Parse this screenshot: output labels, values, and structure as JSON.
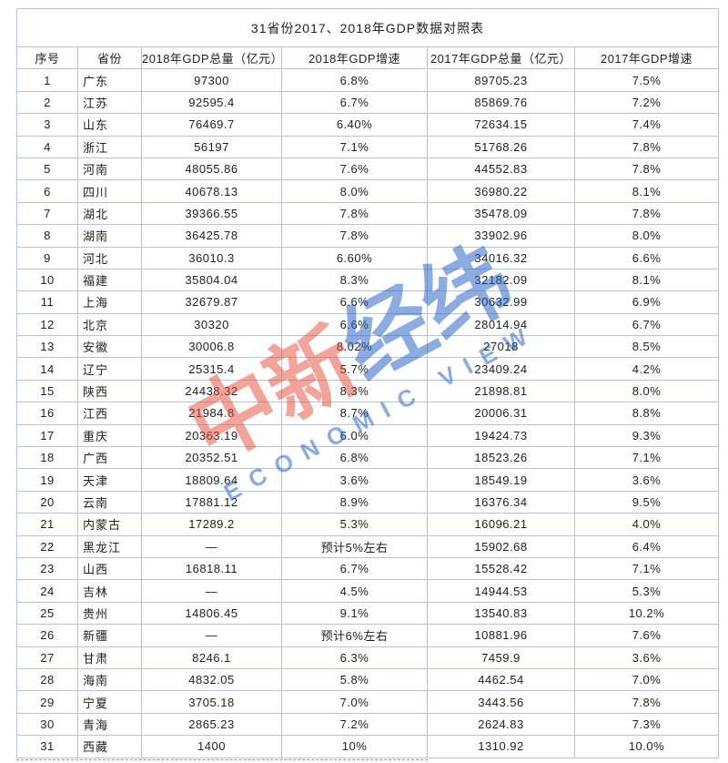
{
  "title": "31省份2017、2018年GDP数据对照表",
  "table": {
    "headers": [
      "序号",
      "省份",
      "2018年GDP总量（亿元）",
      "2018年GDP增速",
      "2017年GDP总量（亿元）",
      "2017年GDP增速"
    ],
    "rows": [
      [
        "1",
        "广东",
        "97300",
        "6.8%",
        "89705.23",
        "7.5%"
      ],
      [
        "2",
        "江苏",
        "92595.4",
        "6.7%",
        "85869.76",
        "7.2%"
      ],
      [
        "3",
        "山东",
        "76469.7",
        "6.40%",
        "72634.15",
        "7.4%"
      ],
      [
        "4",
        "浙江",
        "56197",
        "7.1%",
        "51768.26",
        "7.8%"
      ],
      [
        "5",
        "河南",
        "48055.86",
        "7.6%",
        "44552.83",
        "7.8%"
      ],
      [
        "6",
        "四川",
        "40678.13",
        "8.0%",
        "36980.22",
        "8.1%"
      ],
      [
        "7",
        "湖北",
        "39366.55",
        "7.8%",
        "35478.09",
        "7.8%"
      ],
      [
        "8",
        "湖南",
        "36425.78",
        "7.8%",
        "33902.96",
        "8.0%"
      ],
      [
        "9",
        "河北",
        "36010.3",
        "6.60%",
        "34016.32",
        "6.6%"
      ],
      [
        "10",
        "福建",
        "35804.04",
        "8.3%",
        "32182.09",
        "8.1%"
      ],
      [
        "11",
        "上海",
        "32679.87",
        "6.6%",
        "30632.99",
        "6.9%"
      ],
      [
        "12",
        "北京",
        "30320",
        "6.6%",
        "28014.94",
        "6.7%"
      ],
      [
        "13",
        "安徽",
        "30006.8",
        "8.02%",
        "27018",
        "8.5%"
      ],
      [
        "14",
        "辽宁",
        "25315.4",
        "5.7%",
        "23409.24",
        "4.2%"
      ],
      [
        "15",
        "陕西",
        "24438.32",
        "8.3%",
        "21898.81",
        "8.0%"
      ],
      [
        "16",
        "江西",
        "21984.8",
        "8.7%",
        "20006.31",
        "8.8%"
      ],
      [
        "17",
        "重庆",
        "20363.19",
        "6.0%",
        "19424.73",
        "9.3%"
      ],
      [
        "18",
        "广西",
        "20352.51",
        "6.8%",
        "18523.26",
        "7.1%"
      ],
      [
        "19",
        "天津",
        "18809.64",
        "3.6%",
        "18549.19",
        "3.6%"
      ],
      [
        "20",
        "云南",
        "17881.12",
        "8.9%",
        "16376.34",
        "9.5%"
      ],
      [
        "21",
        "内蒙古",
        "17289.2",
        "5.3%",
        "16096.21",
        "4.0%"
      ],
      [
        "22",
        "黑龙江",
        "—",
        "预计5%左右",
        "15902.68",
        "6.4%"
      ],
      [
        "23",
        "山西",
        "16818.11",
        "6.7%",
        "15528.42",
        "7.1%"
      ],
      [
        "24",
        "吉林",
        "—",
        "4.5%",
        "14944.53",
        "5.3%"
      ],
      [
        "25",
        "贵州",
        "14806.45",
        "9.1%",
        "13540.83",
        "10.2%"
      ],
      [
        "26",
        "新疆",
        "—",
        "预计6%左右",
        "10881.96",
        "7.6%"
      ],
      [
        "27",
        "甘肃",
        "8246.1",
        "6.3%",
        "7459.9",
        "3.6%"
      ],
      [
        "28",
        "海南",
        "4832.05",
        "5.8%",
        "4462.54",
        "7.0%"
      ],
      [
        "29",
        "宁夏",
        "3705.18",
        "7.0%",
        "3443.56",
        "7.8%"
      ],
      [
        "30",
        "青海",
        "2865.23",
        "7.2%",
        "2624.83",
        "7.3%"
      ],
      [
        "31",
        "西藏",
        "1400",
        "10%",
        "1310.92",
        "10.0%"
      ]
    ]
  },
  "watermark": {
    "cn_red": "中新",
    "cn_blue": "经纬",
    "en": "ECONOMIC VIEW",
    "red_color": "#e64836",
    "blue_color": "#2260c6"
  },
  "colors": {
    "border": "#b3c6dd",
    "text": "#1f1f1f",
    "background": "#ffffff"
  },
  "chart_data": {
    "type": "table",
    "title": "31省份2017、2018年GDP数据对照表",
    "columns": [
      "序号",
      "省份",
      "2018年GDP总量（亿元）",
      "2018年GDP增速",
      "2017年GDP总量（亿元）",
      "2017年GDP增速"
    ],
    "rows": [
      [
        "1",
        "广东",
        "97300",
        "6.8%",
        "89705.23",
        "7.5%"
      ],
      [
        "2",
        "江苏",
        "92595.4",
        "6.7%",
        "85869.76",
        "7.2%"
      ],
      [
        "3",
        "山东",
        "76469.7",
        "6.40%",
        "72634.15",
        "7.4%"
      ],
      [
        "4",
        "浙江",
        "56197",
        "7.1%",
        "51768.26",
        "7.8%"
      ],
      [
        "5",
        "河南",
        "48055.86",
        "7.6%",
        "44552.83",
        "7.8%"
      ],
      [
        "6",
        "四川",
        "40678.13",
        "8.0%",
        "36980.22",
        "8.1%"
      ],
      [
        "7",
        "湖北",
        "39366.55",
        "7.8%",
        "35478.09",
        "7.8%"
      ],
      [
        "8",
        "湖南",
        "36425.78",
        "7.8%",
        "33902.96",
        "8.0%"
      ],
      [
        "9",
        "河北",
        "36010.3",
        "6.60%",
        "34016.32",
        "6.6%"
      ],
      [
        "10",
        "福建",
        "35804.04",
        "8.3%",
        "32182.09",
        "8.1%"
      ],
      [
        "11",
        "上海",
        "32679.87",
        "6.6%",
        "30632.99",
        "6.9%"
      ],
      [
        "12",
        "北京",
        "30320",
        "6.6%",
        "28014.94",
        "6.7%"
      ],
      [
        "13",
        "安徽",
        "30006.8",
        "8.02%",
        "27018",
        "8.5%"
      ],
      [
        "14",
        "辽宁",
        "25315.4",
        "5.7%",
        "23409.24",
        "4.2%"
      ],
      [
        "15",
        "陕西",
        "24438.32",
        "8.3%",
        "21898.81",
        "8.0%"
      ],
      [
        "16",
        "江西",
        "21984.8",
        "8.7%",
        "20006.31",
        "8.8%"
      ],
      [
        "17",
        "重庆",
        "20363.19",
        "6.0%",
        "19424.73",
        "9.3%"
      ],
      [
        "18",
        "广西",
        "20352.51",
        "6.8%",
        "18523.26",
        "7.1%"
      ],
      [
        "19",
        "天津",
        "18809.64",
        "3.6%",
        "18549.19",
        "3.6%"
      ],
      [
        "20",
        "云南",
        "17881.12",
        "8.9%",
        "16376.34",
        "9.5%"
      ],
      [
        "21",
        "内蒙古",
        "17289.2",
        "5.3%",
        "16096.21",
        "4.0%"
      ],
      [
        "22",
        "黑龙江",
        "—",
        "预计5%左右",
        "15902.68",
        "6.4%"
      ],
      [
        "23",
        "山西",
        "16818.11",
        "6.7%",
        "15528.42",
        "7.1%"
      ],
      [
        "24",
        "吉林",
        "—",
        "4.5%",
        "14944.53",
        "5.3%"
      ],
      [
        "25",
        "贵州",
        "14806.45",
        "9.1%",
        "13540.83",
        "10.2%"
      ],
      [
        "26",
        "新疆",
        "—",
        "预计6%左右",
        "10881.96",
        "7.6%"
      ],
      [
        "27",
        "甘肃",
        "8246.1",
        "6.3%",
        "7459.9",
        "3.6%"
      ],
      [
        "28",
        "海南",
        "4832.05",
        "5.8%",
        "4462.54",
        "7.0%"
      ],
      [
        "29",
        "宁夏",
        "3705.18",
        "7.0%",
        "3443.56",
        "7.8%"
      ],
      [
        "30",
        "青海",
        "2865.23",
        "7.2%",
        "2624.83",
        "7.3%"
      ],
      [
        "31",
        "西藏",
        "1400",
        "10%",
        "1310.92",
        "10.0%"
      ]
    ]
  }
}
